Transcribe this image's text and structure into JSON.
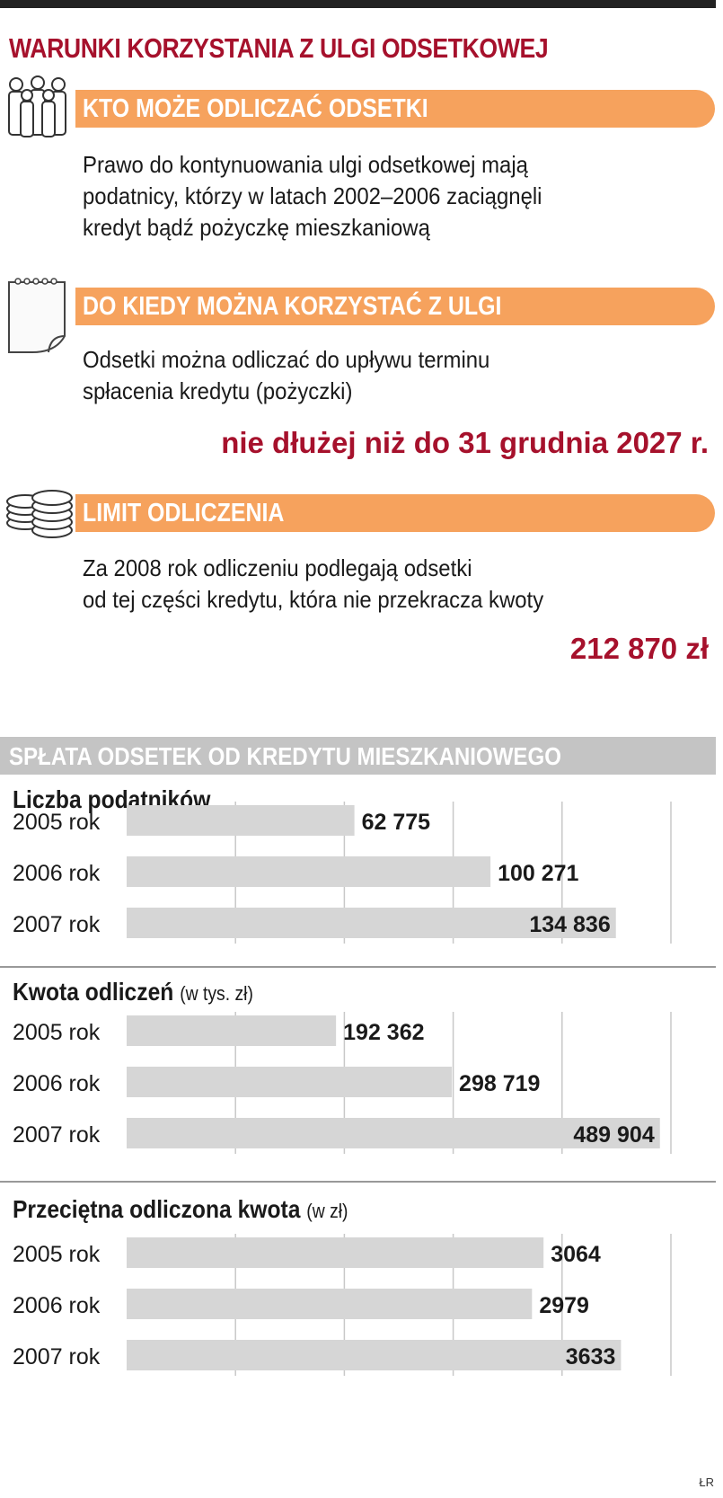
{
  "title": "WARUNKI KORZYSTANIA Z ULGI ODSETKOWEJ",
  "sections": [
    {
      "icon": "people-icon",
      "heading": "KTO MOŻE ODLICZAĆ ODSETKI",
      "lines": [
        "Prawo do kontynuowania ulgi odsetkowej mają",
        "podatnicy, którzy w latach 2002–2006 zaciągnęli",
        "kredyt bądź pożyczkę mieszkaniową"
      ],
      "highlight": ""
    },
    {
      "icon": "calendar-icon",
      "heading": "DO KIEDY MOŻNA KORZYSTAĆ Z ULGI",
      "lines": [
        "Odsetki można odliczać do upływu terminu",
        "spłacenia kredytu (pożyczki)"
      ],
      "highlight": "nie dłużej niż do 31 grudnia 2027 r."
    },
    {
      "icon": "coins-icon",
      "heading": "LIMIT ODLICZENIA",
      "lines": [
        "Za 2008 rok odliczeniu podlegają odsetki",
        "od tej części kredytu, która nie przekracza kwoty"
      ],
      "highlight": "212 870 zł"
    }
  ],
  "charts_heading": "SPŁATA ODSETEK OD KREDYTU MIESZKANIOWEGO",
  "colors": {
    "accent": "#a6112c",
    "pill": "#f6a25d",
    "bar": "#d6d6d6",
    "section": "#c4c4c4"
  },
  "chart_data": [
    {
      "type": "bar",
      "orientation": "horizontal",
      "title": "Liczba podatników",
      "unit": "",
      "categories": [
        "2005 rok",
        "2006 rok",
        "2007 rok"
      ],
      "values": [
        62775,
        100271,
        134836
      ],
      "value_labels": [
        "62 775",
        "100 271",
        "134 836"
      ]
    },
    {
      "type": "bar",
      "orientation": "horizontal",
      "title": "Kwota odliczeń",
      "unit": "(w tys. zł)",
      "categories": [
        "2005 rok",
        "2006 rok",
        "2007 rok"
      ],
      "values": [
        192362,
        298719,
        489904
      ],
      "value_labels": [
        "192 362",
        "298 719",
        "489 904"
      ]
    },
    {
      "type": "bar",
      "orientation": "horizontal",
      "title": "Przeciętna odliczona kwota",
      "unit": "(w zł)",
      "categories": [
        "2005 rok",
        "2006 rok",
        "2007 rok"
      ],
      "values": [
        3064,
        2979,
        3633
      ],
      "value_labels": [
        "3064",
        "2979",
        "3633"
      ]
    }
  ],
  "credit": "ŁR"
}
